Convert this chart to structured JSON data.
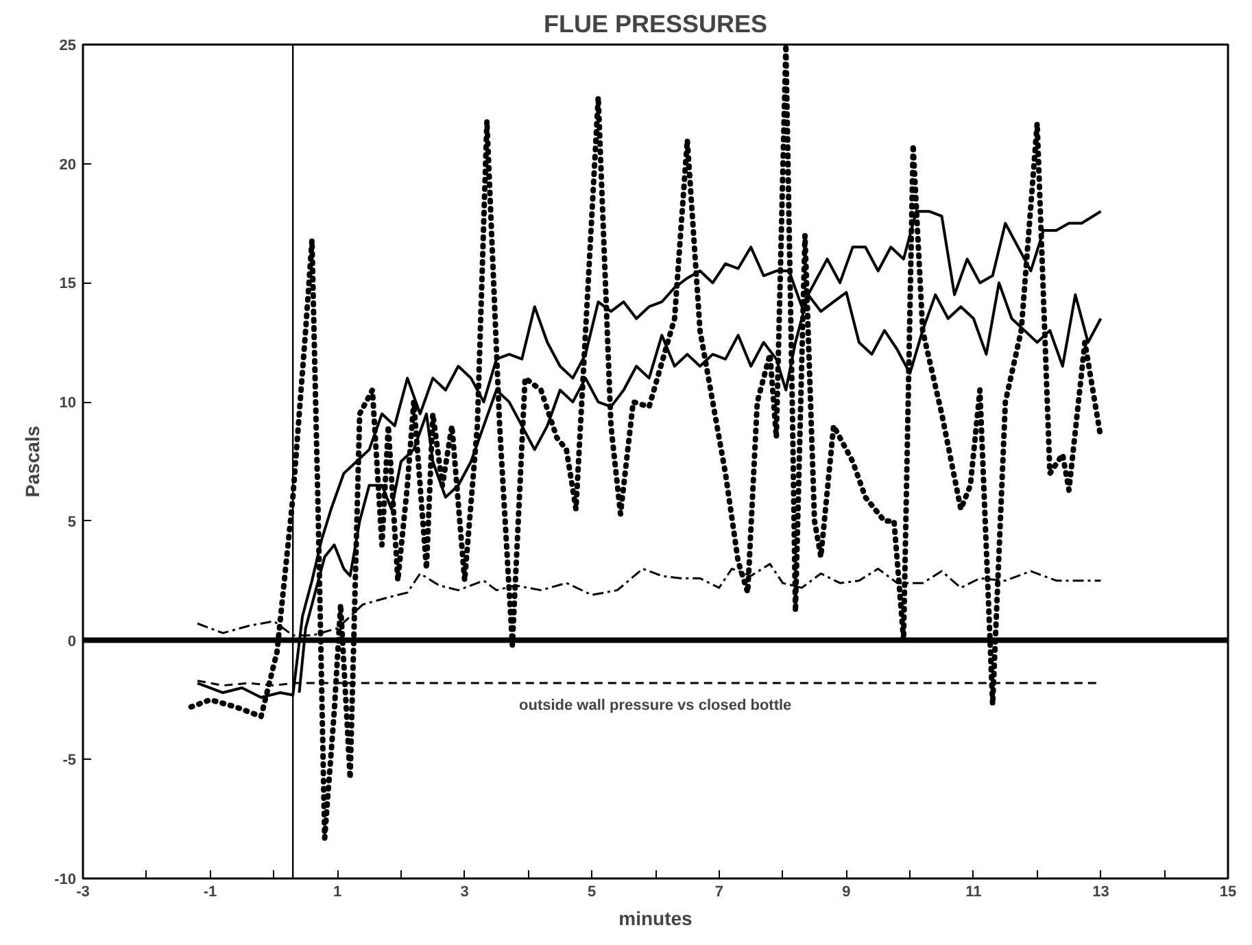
{
  "chart_data": {
    "type": "line",
    "title": "FLUE PRESSURES",
    "xlabel": "minutes",
    "ylabel": "Pascals",
    "xlim": [
      -3,
      15
    ],
    "ylim": [
      -10,
      25
    ],
    "xticks": [
      -3,
      {
        "value": -2,
        "label": null
      },
      -1,
      {
        "value": 0,
        "label": null
      },
      1,
      {
        "value": 2,
        "label": null
      },
      3,
      {
        "value": 4,
        "label": null
      },
      5,
      {
        "value": 6,
        "label": null
      },
      7,
      {
        "value": 8,
        "label": null
      },
      9,
      {
        "value": 10,
        "label": null
      },
      11,
      {
        "value": 12,
        "label": null
      },
      13,
      {
        "value": 14,
        "label": null
      },
      15
    ],
    "yticks": [
      -10,
      -5,
      0,
      5,
      10,
      15,
      20,
      25
    ],
    "grid": false,
    "marker": "none",
    "ref_lines": [
      {
        "axis": "y",
        "value": 0,
        "color": "#000000",
        "line_style": "solid"
      },
      {
        "axis": "x",
        "value": 0.3,
        "color": "#000000",
        "line_style": "solid"
      }
    ],
    "annotations": [
      "outside wall pressure vs closed bottle"
    ],
    "series": [
      {
        "color": "#000000",
        "line_style": "solid",
        "x": [
          -1.2,
          -0.8,
          -0.5,
          -0.2,
          0.1,
          0.3,
          0.45,
          0.6,
          0.75,
          0.9,
          1.1,
          1.3,
          1.5,
          1.7,
          1.9,
          2.1,
          2.3,
          2.5,
          2.7,
          2.9,
          3.1,
          3.3,
          3.5,
          3.7,
          3.9,
          4.1,
          4.3,
          4.5,
          4.7,
          4.9,
          5.1,
          5.3,
          5.5,
          5.7,
          5.9,
          6.1,
          6.3,
          6.5,
          6.7,
          6.9,
          7.1,
          7.3,
          7.5,
          7.7,
          7.9,
          8.1,
          8.3,
          8.5,
          8.7,
          8.9,
          9.1,
          9.3,
          9.5,
          9.7,
          9.9,
          10.1,
          10.3,
          10.5,
          10.7,
          10.9,
          11.1,
          11.3,
          11.5,
          11.7,
          11.9,
          12.1,
          12.3,
          12.5,
          12.7,
          13
        ],
        "values": [
          -1.8,
          -2.2,
          -2.0,
          -2.4,
          -2.2,
          -2.3,
          1,
          2.5,
          4.2,
          5.5,
          7,
          7.5,
          8,
          9.5,
          9,
          11,
          9.5,
          11,
          10.5,
          11.5,
          11,
          10,
          11.8,
          12,
          11.8,
          14,
          12.5,
          11.5,
          11,
          12,
          14.2,
          13.8,
          14.2,
          13.5,
          14,
          14.2,
          14.8,
          15.2,
          15.5,
          15,
          15.8,
          15.6,
          16.5,
          15.3,
          15.5,
          15.5,
          14,
          15,
          16,
          15,
          16.5,
          16.5,
          15.5,
          16.5,
          16,
          18,
          18,
          17.8,
          14.5,
          16,
          15,
          15.3,
          17.5,
          16.5,
          15.5,
          17.2,
          17.2,
          17.5,
          17.5,
          18
        ]
      },
      {
        "color": "#000000",
        "line_style": "solid",
        "x": [
          0.4,
          0.5,
          0.65,
          0.8,
          0.95,
          1.1,
          1.2,
          1.35,
          1.5,
          1.7,
          1.85,
          2.0,
          2.2,
          2.4,
          2.5,
          2.7,
          2.9,
          3.1,
          3.3,
          3.5,
          3.7,
          3.9,
          4.1,
          4.3,
          4.5,
          4.7,
          4.9,
          5.1,
          5.3,
          5.5,
          5.7,
          5.9,
          6.1,
          6.3,
          6.5,
          6.7,
          6.9,
          7.1,
          7.3,
          7.5,
          7.7,
          7.9,
          8.05,
          8.2,
          8.4,
          8.6,
          8.8,
          9.0,
          9.2,
          9.4,
          9.6,
          9.8,
          10.0,
          10.2,
          10.4,
          10.6,
          10.8,
          11.0,
          11.2,
          11.4,
          11.6,
          11.8,
          12.0,
          12.2,
          12.4,
          12.6,
          12.8,
          13
        ],
        "values": [
          -2.2,
          0.5,
          2,
          3.5,
          4,
          3,
          2.7,
          5,
          6.5,
          6.5,
          5.5,
          7.5,
          8,
          9.5,
          7.5,
          6,
          6.5,
          7.5,
          9,
          10.5,
          10,
          9,
          8,
          9,
          10.5,
          10,
          11,
          10,
          9.8,
          10.5,
          11.5,
          11,
          12.8,
          11.5,
          12,
          11.5,
          12,
          11.8,
          12.8,
          11.5,
          12.5,
          11.8,
          10.5,
          12.5,
          14.5,
          13.8,
          14.2,
          14.6,
          12.5,
          12,
          13,
          12.2,
          11.2,
          13,
          14.5,
          13.5,
          14,
          13.5,
          12,
          15,
          13.5,
          13,
          12.5,
          13,
          11.5,
          14.5,
          12.5,
          13.5
        ]
      },
      {
        "color": "#000000",
        "line_style": "dotted",
        "x": [
          -1.3,
          -1,
          -0.6,
          -0.2,
          0.05,
          0.3,
          0.5,
          0.6,
          0.7,
          0.8,
          0.95,
          1.05,
          1.2,
          1.35,
          1.55,
          1.7,
          1.8,
          1.95,
          2.1,
          2.2,
          2.4,
          2.5,
          2.65,
          2.8,
          3.0,
          3.2,
          3.35,
          3.55,
          3.75,
          3.95,
          4.2,
          4.45,
          4.6,
          4.75,
          5.1,
          5.3,
          5.45,
          5.65,
          5.9,
          6.3,
          6.5,
          6.7,
          6.9,
          7.1,
          7.3,
          7.45,
          7.6,
          7.8,
          7.9,
          8.05,
          8.15,
          8.2,
          8.35,
          8.5,
          8.6,
          8.8,
          9.1,
          9.3,
          9.6,
          9.75,
          9.9,
          10.05,
          10.2,
          10.5,
          10.8,
          10.95,
          11.1,
          11.3,
          11.5,
          11.75,
          12.0,
          12.2,
          12.4,
          12.5,
          12.75,
          13.0
        ],
        "values": [
          -2.8,
          -2.5,
          -2.8,
          -3.2,
          -0.5,
          6,
          13,
          16.8,
          5,
          -8.3,
          -3,
          1.5,
          -5.8,
          9.5,
          10.5,
          4,
          9,
          2.5,
          6.5,
          10,
          3,
          9.5,
          6.5,
          9,
          2.5,
          9,
          21.8,
          9,
          -0.2,
          11,
          10.5,
          8.5,
          8,
          5.5,
          22.8,
          9,
          5.3,
          10,
          9.8,
          13.5,
          21,
          13,
          10,
          7,
          3.3,
          2,
          10,
          12,
          8.5,
          25,
          10,
          1.2,
          17,
          5,
          3.5,
          9,
          7.5,
          6,
          5,
          5,
          0,
          20.8,
          13,
          9.5,
          5.5,
          6.5,
          10.5,
          -2.7,
          10,
          13,
          21.7,
          7,
          7.8,
          6.3,
          12.5,
          8.5
        ]
      },
      {
        "color": "#000000",
        "line_style": "dashdot",
        "x": [
          -1.2,
          -0.8,
          -0.4,
          0,
          0.3,
          0.6,
          1.0,
          1.4,
          1.8,
          2.1,
          2.3,
          2.6,
          2.9,
          3.3,
          3.5,
          3.8,
          4.2,
          4.6,
          5.0,
          5.4,
          5.8,
          6.1,
          6.4,
          6.7,
          7.0,
          7.2,
          7.5,
          7.8,
          8.0,
          8.3,
          8.6,
          8.9,
          9.2,
          9.5,
          9.8,
          10.2,
          10.5,
          10.8,
          11.1,
          11.5,
          11.9,
          12.3,
          12.7,
          13
        ],
        "values": [
          0.7,
          0.3,
          0.6,
          0.8,
          0.2,
          0.2,
          0.5,
          1.5,
          1.8,
          2,
          2.8,
          2.3,
          2.1,
          2.5,
          2.1,
          2.3,
          2.1,
          2.4,
          1.9,
          2.1,
          3,
          2.7,
          2.6,
          2.6,
          2.2,
          3.0,
          2.7,
          3.2,
          2.4,
          2.2,
          2.8,
          2.4,
          2.5,
          3.0,
          2.4,
          2.4,
          2.9,
          2.2,
          2.6,
          2.5,
          2.9,
          2.5,
          2.5,
          2.5
        ]
      },
      {
        "color": "#000000",
        "line_style": "dashed",
        "x": [
          -1.2,
          -0.8,
          -0.4,
          0,
          0.3,
          1.35,
          13
        ],
        "values": [
          -1.7,
          -1.9,
          -1.8,
          -1.9,
          -1.8,
          -1.8,
          -1.8
        ]
      }
    ]
  }
}
